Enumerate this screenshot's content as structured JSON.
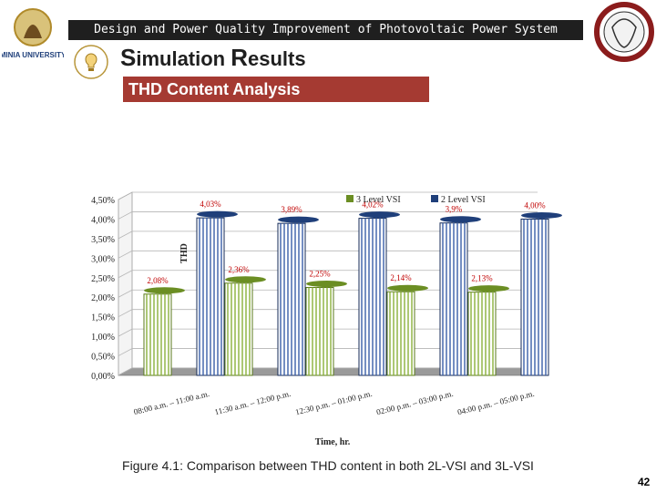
{
  "header": {
    "banner": "Design and Power Quality Improvement of Photovoltaic Power System",
    "section_title_cap1": "S",
    "section_title_rest1": "imulation ",
    "section_title_cap2": "R",
    "section_title_rest2": "esults",
    "logo_left_text": "MINIA UNIVERSITY",
    "bar_title": "THD Content Analysis"
  },
  "chart_data": {
    "type": "bar",
    "title": "",
    "xlabel": "Time, hr.",
    "ylabel": "THD",
    "ylim": [
      0,
      4.5
    ],
    "yticks": [
      "0,00%",
      "0,50%",
      "1,00%",
      "1,50%",
      "2,00%",
      "2,50%",
      "3,00%",
      "3,50%",
      "4,00%",
      "4,50%"
    ],
    "categories": [
      "08:00 a.m. – 11:00 a.m.",
      "11:30 a.m. – 12:00 p.m.",
      "12:30 p.m. – 01:00 p.m.",
      "02:00 p.m. – 03:00 p.m.",
      "04:00 p.m. – 05:00 p.m."
    ],
    "series": [
      {
        "name": "3 Level VSI",
        "values": [
          2.08,
          2.36,
          2.25,
          2.14,
          2.13
        ],
        "labels": [
          "2,08%",
          "2,36%",
          "2,25%",
          "2,14%",
          "2,13%"
        ],
        "color": "#6b8e23"
      },
      {
        "name": "2 Level VSI",
        "values": [
          4.03,
          3.89,
          4.02,
          3.9,
          4.0
        ],
        "labels": [
          "4,03%",
          "3,89%",
          "4,02%",
          "3,9%",
          "4,00%"
        ],
        "color": "#1f3f7a"
      }
    ],
    "grid": true,
    "legend": "top-right"
  },
  "caption": "Figure 4.1: Comparison between THD content in both 2L-VSI and 3L-VSI",
  "page_number": "42"
}
